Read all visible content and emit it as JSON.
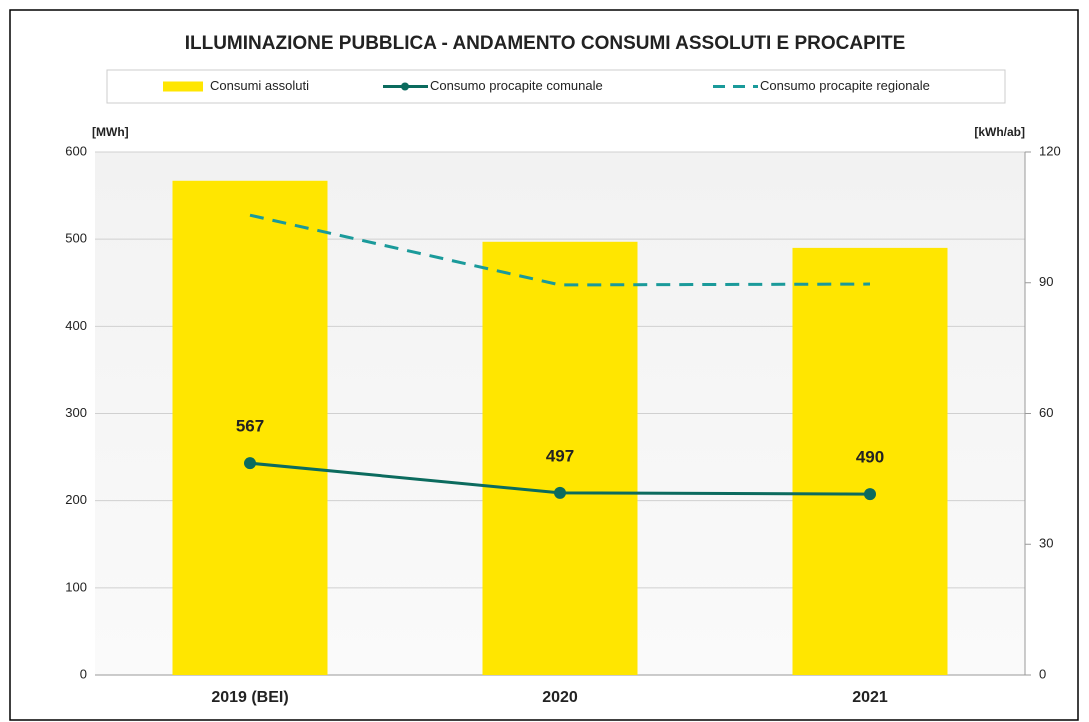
{
  "chart_data": {
    "type": "bar",
    "title": "ILLUMINAZIONE PUBBLICA - ANDAMENTO CONSUMI ASSOLUTI E PROCAPITE",
    "y_label": "[MWh]",
    "y2_label": "[kWh/ab]",
    "categories": [
      "2019 (BEI)",
      "2020",
      "2021"
    ],
    "series": [
      {
        "name": "Consumi assoluti",
        "type": "bar",
        "color": "#ffe600",
        "values": [
          567,
          497,
          490
        ]
      },
      {
        "name": "Consumo procapite comunale",
        "type": "line",
        "color": "#0b6b5e",
        "axis": "y2",
        "marker": true,
        "values": [
          48.6,
          41.8,
          41.5
        ]
      },
      {
        "name": "Consumo procapite regionale",
        "type": "line",
        "color": "#1a9a9a",
        "axis": "y2",
        "dashed": true,
        "values": [
          105.5,
          89.5,
          89.7
        ]
      }
    ],
    "ylim": [
      0,
      600
    ],
    "yticks": [
      0,
      100,
      200,
      300,
      400,
      500,
      600
    ],
    "y2lim": [
      0,
      120
    ],
    "y2ticks": [
      0,
      30,
      60,
      90,
      120
    ],
    "grid": true
  }
}
